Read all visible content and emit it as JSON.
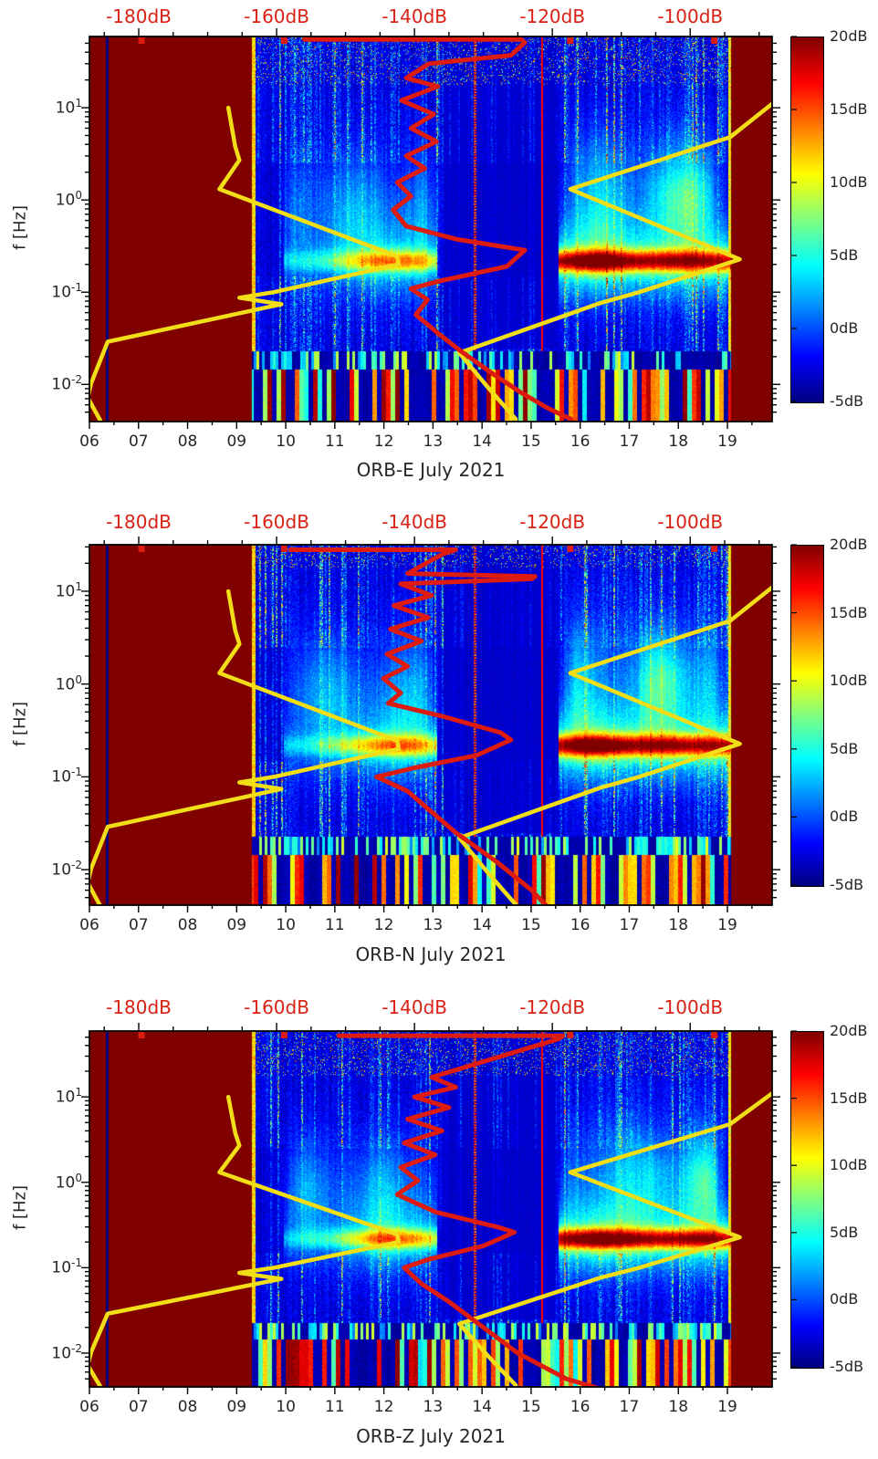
{
  "figure": {
    "kind": "three-panel seismic spectrogram figure",
    "y_axis_label": "f [Hz]"
  },
  "chart_data": {
    "type": "heatmap",
    "panels": [
      {
        "title": "ORB-E July 2021",
        "component": "E",
        "texture_seed": 11,
        "red_plateau_freq_hz": 55,
        "top_marker_db": [
          -179.6,
          -158.9,
          -117.4,
          -96.5
        ],
        "red_spectrum_db_hz": [
          [
            -156,
            55
          ],
          [
            -124.5,
            55
          ],
          [
            -124,
            51
          ],
          [
            -126,
            37
          ],
          [
            -137.9,
            30
          ],
          [
            -141.2,
            21
          ],
          [
            -136.6,
            17
          ],
          [
            -141.9,
            12
          ],
          [
            -137.2,
            8.5
          ],
          [
            -140.5,
            6
          ],
          [
            -136.8,
            4.3
          ],
          [
            -141.2,
            3
          ],
          [
            -138.5,
            2.2
          ],
          [
            -142.5,
            1.55
          ],
          [
            -140.5,
            1.1
          ],
          [
            -143.1,
            0.78
          ],
          [
            -141.2,
            0.52
          ],
          [
            -133.9,
            0.375
          ],
          [
            -124,
            0.285
          ],
          [
            -126.6,
            0.19
          ],
          [
            -136.6,
            0.131
          ],
          [
            -140.5,
            0.109
          ],
          [
            -138.1,
            0.083
          ],
          [
            -139.8,
            0.057
          ],
          [
            -136.6,
            0.036
          ],
          [
            -133.3,
            0.023
          ],
          [
            -128.6,
            0.013
          ],
          [
            -124.6,
            0.0082
          ],
          [
            -120.6,
            0.0055
          ],
          [
            -117.3,
            0.0042
          ]
        ]
      },
      {
        "title": "ORB-N July 2021",
        "component": "N",
        "texture_seed": 22,
        "red_plateau_freq_hz": 28,
        "top_marker_db": [
          -179.6,
          -158.9,
          -117.4,
          -96.5
        ],
        "red_spectrum_db_hz": [
          [
            -158,
            28
          ],
          [
            -134,
            28
          ],
          [
            -136,
            25
          ],
          [
            -140,
            17
          ],
          [
            -141,
            15.5
          ],
          [
            -122.5,
            14.4
          ],
          [
            -123,
            13.6
          ],
          [
            -142,
            12
          ],
          [
            -137.5,
            9
          ],
          [
            -143,
            7
          ],
          [
            -138,
            5.2
          ],
          [
            -143.5,
            3.9
          ],
          [
            -139,
            2.9
          ],
          [
            -144,
            2.1
          ],
          [
            -141,
            1.55
          ],
          [
            -144.5,
            1.15
          ],
          [
            -142,
            0.8
          ],
          [
            -143.8,
            0.62
          ],
          [
            -136,
            0.45
          ],
          [
            -127.5,
            0.3
          ],
          [
            -126,
            0.25
          ],
          [
            -131,
            0.17
          ],
          [
            -140,
            0.125
          ],
          [
            -145.5,
            0.1
          ],
          [
            -141,
            0.07
          ],
          [
            -138,
            0.045
          ],
          [
            -134,
            0.025
          ],
          [
            -128,
            0.012
          ],
          [
            -123,
            0.006
          ],
          [
            -119.5,
            0.0032
          ]
        ]
      },
      {
        "title": "ORB-Z July 2021",
        "component": "Z",
        "texture_seed": 33,
        "red_plateau_freq_hz": 52,
        "top_marker_db": [
          -179.6,
          -158.9,
          -117.4,
          -96.5
        ],
        "red_spectrum_db_hz": [
          [
            -151,
            52
          ],
          [
            -118.5,
            52
          ],
          [
            -119,
            48
          ],
          [
            -137.5,
            17
          ],
          [
            -134,
            13
          ],
          [
            -140,
            10
          ],
          [
            -135,
            7.5
          ],
          [
            -141,
            5.5
          ],
          [
            -136,
            4
          ],
          [
            -141.5,
            2.9
          ],
          [
            -137,
            2.1
          ],
          [
            -142,
            1.5
          ],
          [
            -139.5,
            1.05
          ],
          [
            -142.5,
            0.72
          ],
          [
            -137,
            0.45
          ],
          [
            -128,
            0.3
          ],
          [
            -125.5,
            0.26
          ],
          [
            -130,
            0.18
          ],
          [
            -138,
            0.125
          ],
          [
            -141.5,
            0.1
          ],
          [
            -139,
            0.065
          ],
          [
            -135,
            0.04
          ],
          [
            -130,
            0.02
          ],
          [
            -125,
            0.01
          ],
          [
            -118,
            0.005
          ],
          [
            -112,
            0.0036
          ]
        ]
      }
    ],
    "x_axis": {
      "tick_labels": [
        "06",
        "07",
        "08",
        "09",
        "10",
        "11",
        "12",
        "13",
        "14",
        "15",
        "16",
        "17",
        "18",
        "19"
      ],
      "tick_hours": [
        6,
        7,
        8,
        9,
        10,
        11,
        12,
        13,
        14,
        15,
        16,
        17,
        18,
        19
      ],
      "range_hours": [
        6,
        19.91
      ]
    },
    "y_axis": {
      "label": "f [Hz]",
      "tick_exponents": [
        1,
        0,
        -1,
        -2
      ],
      "scale": "log",
      "approx_range_hz": [
        0.004,
        55
      ]
    },
    "top_axis": {
      "tick_labels": [
        "-180dB",
        "-160dB",
        "-140dB",
        "-120dB",
        "-100dB"
      ],
      "tick_db": [
        -180,
        -160,
        -140,
        -120,
        -100
      ],
      "approx_range_db": [
        -187.2,
        -88.1
      ],
      "color": "#d92115"
    },
    "colorbar": {
      "tick_labels": [
        "20dB",
        "15dB",
        "10dB",
        "5dB",
        "0dB",
        "-5dB"
      ],
      "tick_db": [
        20,
        15,
        10,
        5,
        0,
        -5
      ],
      "min_db": -5,
      "max_db": 20,
      "colormap": "jet"
    },
    "overlay_curves": {
      "yellow_low_noise_model_db_hz": [
        [
          -167,
          10
        ],
        [
          -166,
          3.8
        ],
        [
          -165.4,
          2.7
        ],
        [
          -168.3,
          1.31
        ],
        [
          -142.5,
          0.245
        ],
        [
          -142.3,
          0.2
        ],
        [
          -160.4,
          0.1
        ],
        [
          -165.4,
          0.087
        ],
        [
          -159.3,
          0.074
        ],
        [
          -184.5,
          0.029
        ],
        [
          -186.9,
          0.0103
        ],
        [
          -187.4,
          0.0072
        ],
        [
          -185.6,
          0.0041
        ]
      ],
      "yellow_high_noise_model_db_hz": [
        [
          -87.8,
          11.5
        ],
        [
          -94.2,
          4.8
        ],
        [
          -117.4,
          1.31
        ],
        [
          -92.8,
          0.227
        ],
        [
          -107.4,
          0.1
        ],
        [
          -113.1,
          0.076
        ],
        [
          -133.5,
          0.022
        ],
        [
          -129.3,
          0.0092
        ],
        [
          -125.3,
          0.0042
        ]
      ],
      "yellow_color": "#f2de17",
      "red_color": "#dd1b0e"
    },
    "features": {
      "data_time_range_hours": [
        9.31,
        19.06
      ],
      "no_data_value_db": 20,
      "navy_line_hour": 6.35,
      "thin_red_line_hour": 15.21,
      "dotted_hot_column_hour": 13.85,
      "dark_patch_hours": [
        13.2,
        15.5
      ],
      "microseism_band_center_hz": 0.21,
      "bottom_band_max_hz": 0.0145,
      "mid_band_max_hz": 0.023
    }
  }
}
